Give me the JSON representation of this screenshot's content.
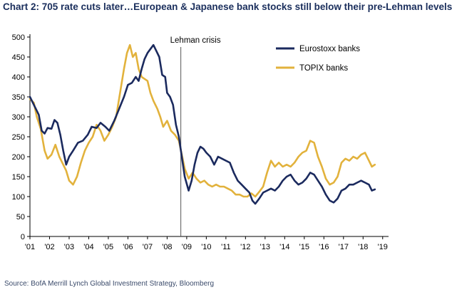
{
  "chart_data": {
    "type": "line",
    "title": "Chart 2: 705 rate cuts later…European & Japanese bank stocks still below their pre-Lehman levels",
    "source": "Source: BofA Merrill Lynch Global Investment Strategy, Bloomberg",
    "ylim": [
      0,
      500
    ],
    "y_ticks": [
      0,
      50,
      100,
      150,
      200,
      250,
      300,
      350,
      400,
      450,
      500
    ],
    "xlim": [
      2001,
      2019.3
    ],
    "x_ticks": [
      {
        "value": 2001,
        "label": "'01"
      },
      {
        "value": 2002,
        "label": "'02"
      },
      {
        "value": 2003,
        "label": "'03"
      },
      {
        "value": 2004,
        "label": "'04"
      },
      {
        "value": 2005,
        "label": "'05"
      },
      {
        "value": 2006,
        "label": "'06"
      },
      {
        "value": 2007,
        "label": "'07"
      },
      {
        "value": 2008,
        "label": "'08"
      },
      {
        "value": 2009,
        "label": "'09"
      },
      {
        "value": 2010,
        "label": "'10"
      },
      {
        "value": 2011,
        "label": "'11"
      },
      {
        "value": 2012,
        "label": "'12"
      },
      {
        "value": 2013,
        "label": "'13"
      },
      {
        "value": 2014,
        "label": "'14"
      },
      {
        "value": 2015,
        "label": "'15"
      },
      {
        "value": 2016,
        "label": "'16"
      },
      {
        "value": 2017,
        "label": "'17"
      },
      {
        "value": 2018,
        "label": "'18"
      },
      {
        "value": 2019,
        "label": "'19"
      }
    ],
    "grid": false,
    "legend": "top-right",
    "annotation": {
      "label": "Lehman crisis",
      "x": 2008.7
    },
    "series": [
      {
        "name": "Eurostoxx banks",
        "color": "#1b2a5e",
        "points": [
          [
            2001.0,
            350
          ],
          [
            2001.2,
            330
          ],
          [
            2001.45,
            305
          ],
          [
            2001.6,
            265
          ],
          [
            2001.75,
            258
          ],
          [
            2001.9,
            272
          ],
          [
            2002.1,
            270
          ],
          [
            2002.25,
            292
          ],
          [
            2002.4,
            285
          ],
          [
            2002.55,
            255
          ],
          [
            2002.7,
            215
          ],
          [
            2002.85,
            180
          ],
          [
            2003.0,
            200
          ],
          [
            2003.2,
            215
          ],
          [
            2003.45,
            235
          ],
          [
            2003.7,
            240
          ],
          [
            2003.95,
            255
          ],
          [
            2004.15,
            275
          ],
          [
            2004.4,
            272
          ],
          [
            2004.6,
            285
          ],
          [
            2004.85,
            275
          ],
          [
            2005.05,
            265
          ],
          [
            2005.3,
            290
          ],
          [
            2005.55,
            320
          ],
          [
            2005.8,
            350
          ],
          [
            2006.0,
            380
          ],
          [
            2006.2,
            385
          ],
          [
            2006.4,
            400
          ],
          [
            2006.55,
            390
          ],
          [
            2006.7,
            420
          ],
          [
            2006.85,
            445
          ],
          [
            2007.0,
            460
          ],
          [
            2007.15,
            470
          ],
          [
            2007.3,
            480
          ],
          [
            2007.45,
            465
          ],
          [
            2007.6,
            450
          ],
          [
            2007.75,
            405
          ],
          [
            2007.9,
            400
          ],
          [
            2008.0,
            360
          ],
          [
            2008.15,
            350
          ],
          [
            2008.3,
            330
          ],
          [
            2008.45,
            280
          ],
          [
            2008.6,
            250
          ],
          [
            2008.75,
            200
          ],
          [
            2008.9,
            150
          ],
          [
            2009.1,
            115
          ],
          [
            2009.25,
            140
          ],
          [
            2009.4,
            180
          ],
          [
            2009.55,
            210
          ],
          [
            2009.7,
            225
          ],
          [
            2009.85,
            220
          ],
          [
            2010.0,
            210
          ],
          [
            2010.2,
            200
          ],
          [
            2010.4,
            180
          ],
          [
            2010.6,
            200
          ],
          [
            2010.8,
            195
          ],
          [
            2011.0,
            190
          ],
          [
            2011.2,
            185
          ],
          [
            2011.4,
            160
          ],
          [
            2011.6,
            140
          ],
          [
            2011.8,
            130
          ],
          [
            2012.0,
            120
          ],
          [
            2012.2,
            110
          ],
          [
            2012.35,
            90
          ],
          [
            2012.5,
            82
          ],
          [
            2012.7,
            95
          ],
          [
            2012.9,
            110
          ],
          [
            2013.1,
            115
          ],
          [
            2013.3,
            120
          ],
          [
            2013.5,
            115
          ],
          [
            2013.7,
            125
          ],
          [
            2013.9,
            140
          ],
          [
            2014.1,
            150
          ],
          [
            2014.3,
            155
          ],
          [
            2014.5,
            140
          ],
          [
            2014.7,
            130
          ],
          [
            2014.9,
            135
          ],
          [
            2015.1,
            145
          ],
          [
            2015.3,
            160
          ],
          [
            2015.5,
            155
          ],
          [
            2015.7,
            140
          ],
          [
            2015.9,
            125
          ],
          [
            2016.1,
            105
          ],
          [
            2016.3,
            90
          ],
          [
            2016.5,
            85
          ],
          [
            2016.7,
            95
          ],
          [
            2016.9,
            115
          ],
          [
            2017.1,
            120
          ],
          [
            2017.3,
            130
          ],
          [
            2017.5,
            130
          ],
          [
            2017.7,
            135
          ],
          [
            2017.9,
            140
          ],
          [
            2018.1,
            135
          ],
          [
            2018.3,
            130
          ],
          [
            2018.45,
            115
          ],
          [
            2018.6,
            118
          ]
        ]
      },
      {
        "name": "TOPIX banks",
        "color": "#e2b23c",
        "points": [
          [
            2001.0,
            345
          ],
          [
            2001.2,
            335
          ],
          [
            2001.35,
            300
          ],
          [
            2001.55,
            270
          ],
          [
            2001.75,
            215
          ],
          [
            2001.9,
            195
          ],
          [
            2002.1,
            205
          ],
          [
            2002.3,
            230
          ],
          [
            2002.5,
            200
          ],
          [
            2002.7,
            180
          ],
          [
            2002.85,
            165
          ],
          [
            2003.0,
            140
          ],
          [
            2003.2,
            130
          ],
          [
            2003.4,
            150
          ],
          [
            2003.6,
            185
          ],
          [
            2003.8,
            215
          ],
          [
            2004.0,
            235
          ],
          [
            2004.2,
            250
          ],
          [
            2004.4,
            280
          ],
          [
            2004.6,
            265
          ],
          [
            2004.8,
            240
          ],
          [
            2005.0,
            255
          ],
          [
            2005.2,
            275
          ],
          [
            2005.4,
            300
          ],
          [
            2005.6,
            360
          ],
          [
            2005.8,
            420
          ],
          [
            2005.95,
            460
          ],
          [
            2006.1,
            480
          ],
          [
            2006.25,
            450
          ],
          [
            2006.4,
            460
          ],
          [
            2006.55,
            420
          ],
          [
            2006.7,
            400
          ],
          [
            2006.85,
            395
          ],
          [
            2007.0,
            390
          ],
          [
            2007.15,
            360
          ],
          [
            2007.3,
            340
          ],
          [
            2007.5,
            320
          ],
          [
            2007.65,
            300
          ],
          [
            2007.8,
            275
          ],
          [
            2008.0,
            290
          ],
          [
            2008.2,
            265
          ],
          [
            2008.4,
            255
          ],
          [
            2008.6,
            240
          ],
          [
            2008.75,
            205
          ],
          [
            2008.9,
            170
          ],
          [
            2009.1,
            145
          ],
          [
            2009.3,
            160
          ],
          [
            2009.5,
            145
          ],
          [
            2009.7,
            135
          ],
          [
            2009.9,
            140
          ],
          [
            2010.1,
            130
          ],
          [
            2010.3,
            125
          ],
          [
            2010.5,
            130
          ],
          [
            2010.7,
            125
          ],
          [
            2010.9,
            125
          ],
          [
            2011.1,
            120
          ],
          [
            2011.3,
            115
          ],
          [
            2011.5,
            105
          ],
          [
            2011.7,
            105
          ],
          [
            2011.9,
            100
          ],
          [
            2012.1,
            100
          ],
          [
            2012.3,
            108
          ],
          [
            2012.5,
            100
          ],
          [
            2012.7,
            112
          ],
          [
            2012.9,
            125
          ],
          [
            2013.1,
            160
          ],
          [
            2013.3,
            190
          ],
          [
            2013.5,
            175
          ],
          [
            2013.7,
            185
          ],
          [
            2013.9,
            175
          ],
          [
            2014.1,
            180
          ],
          [
            2014.3,
            175
          ],
          [
            2014.5,
            185
          ],
          [
            2014.7,
            200
          ],
          [
            2014.9,
            210
          ],
          [
            2015.1,
            215
          ],
          [
            2015.3,
            240
          ],
          [
            2015.5,
            235
          ],
          [
            2015.7,
            200
          ],
          [
            2015.9,
            175
          ],
          [
            2016.1,
            145
          ],
          [
            2016.3,
            130
          ],
          [
            2016.5,
            135
          ],
          [
            2016.7,
            150
          ],
          [
            2016.9,
            185
          ],
          [
            2017.1,
            195
          ],
          [
            2017.3,
            190
          ],
          [
            2017.5,
            200
          ],
          [
            2017.7,
            195
          ],
          [
            2017.9,
            205
          ],
          [
            2018.1,
            210
          ],
          [
            2018.3,
            190
          ],
          [
            2018.45,
            175
          ],
          [
            2018.6,
            180
          ]
        ]
      }
    ]
  }
}
